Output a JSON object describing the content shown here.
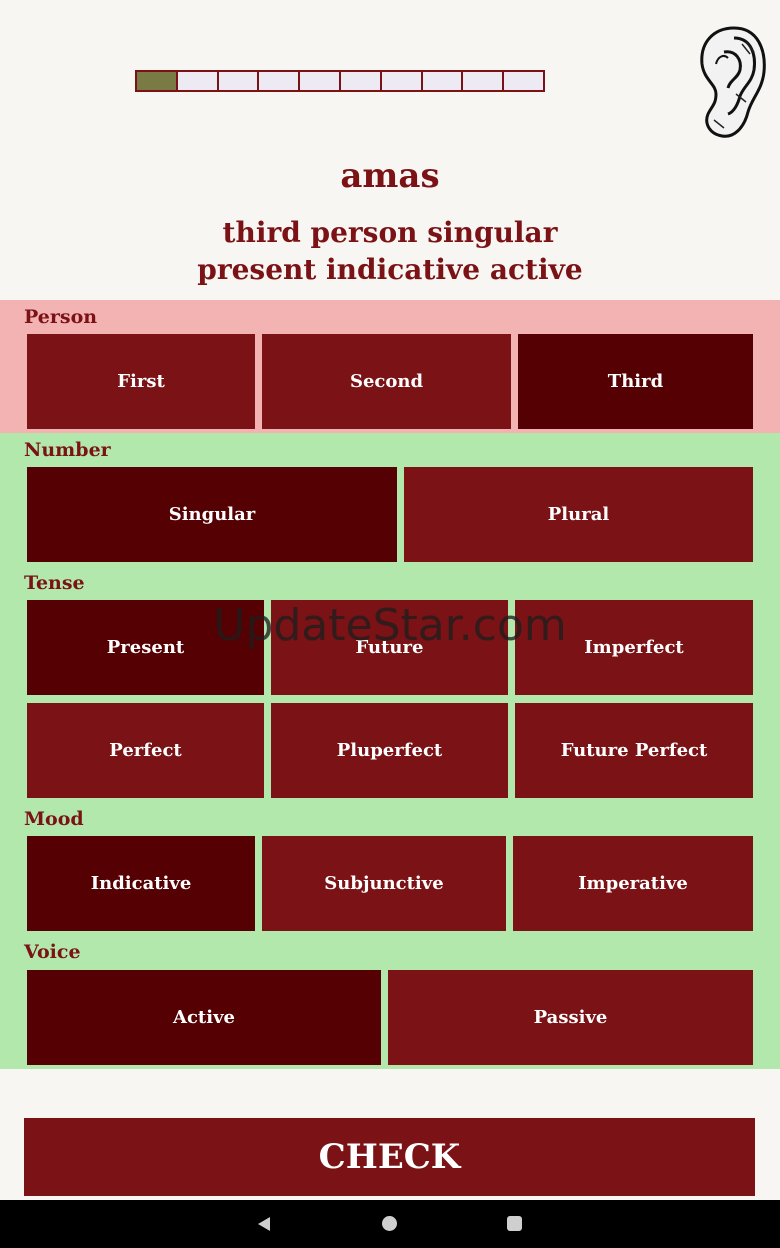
{
  "progress": {
    "done": 1,
    "total": 10
  },
  "ear_icon": "ear-icon",
  "word": "amas",
  "description": [
    "third person singular",
    "present indicative active"
  ],
  "groups": {
    "person": {
      "label": "Person",
      "options": [
        "First",
        "Second",
        "Third"
      ],
      "selected": "Third"
    },
    "number": {
      "label": "Number",
      "options": [
        "Singular",
        "Plural"
      ],
      "selected": "Singular"
    },
    "tense": {
      "label": "Tense",
      "options": [
        "Present",
        "Future",
        "Imperfect",
        "Perfect",
        "Pluperfect",
        "Future Perfect"
      ],
      "selected": "Present"
    },
    "mood": {
      "label": "Mood",
      "options": [
        "Indicative",
        "Subjunctive",
        "Imperative"
      ],
      "selected": "Indicative"
    },
    "voice": {
      "label": "Voice",
      "options": [
        "Active",
        "Passive"
      ],
      "selected": "Active"
    }
  },
  "check_label": "CHECK",
  "watermark": "UpdateStar.com",
  "colors": {
    "button": "#7a1216",
    "selected": "#550003",
    "person_bg": "#f3b3b3",
    "other_bg": "#b3e8ac",
    "progress_done": "#7a7a44"
  },
  "navbar": {
    "back": "back-icon",
    "home": "home-icon",
    "recents": "recents-icon"
  }
}
